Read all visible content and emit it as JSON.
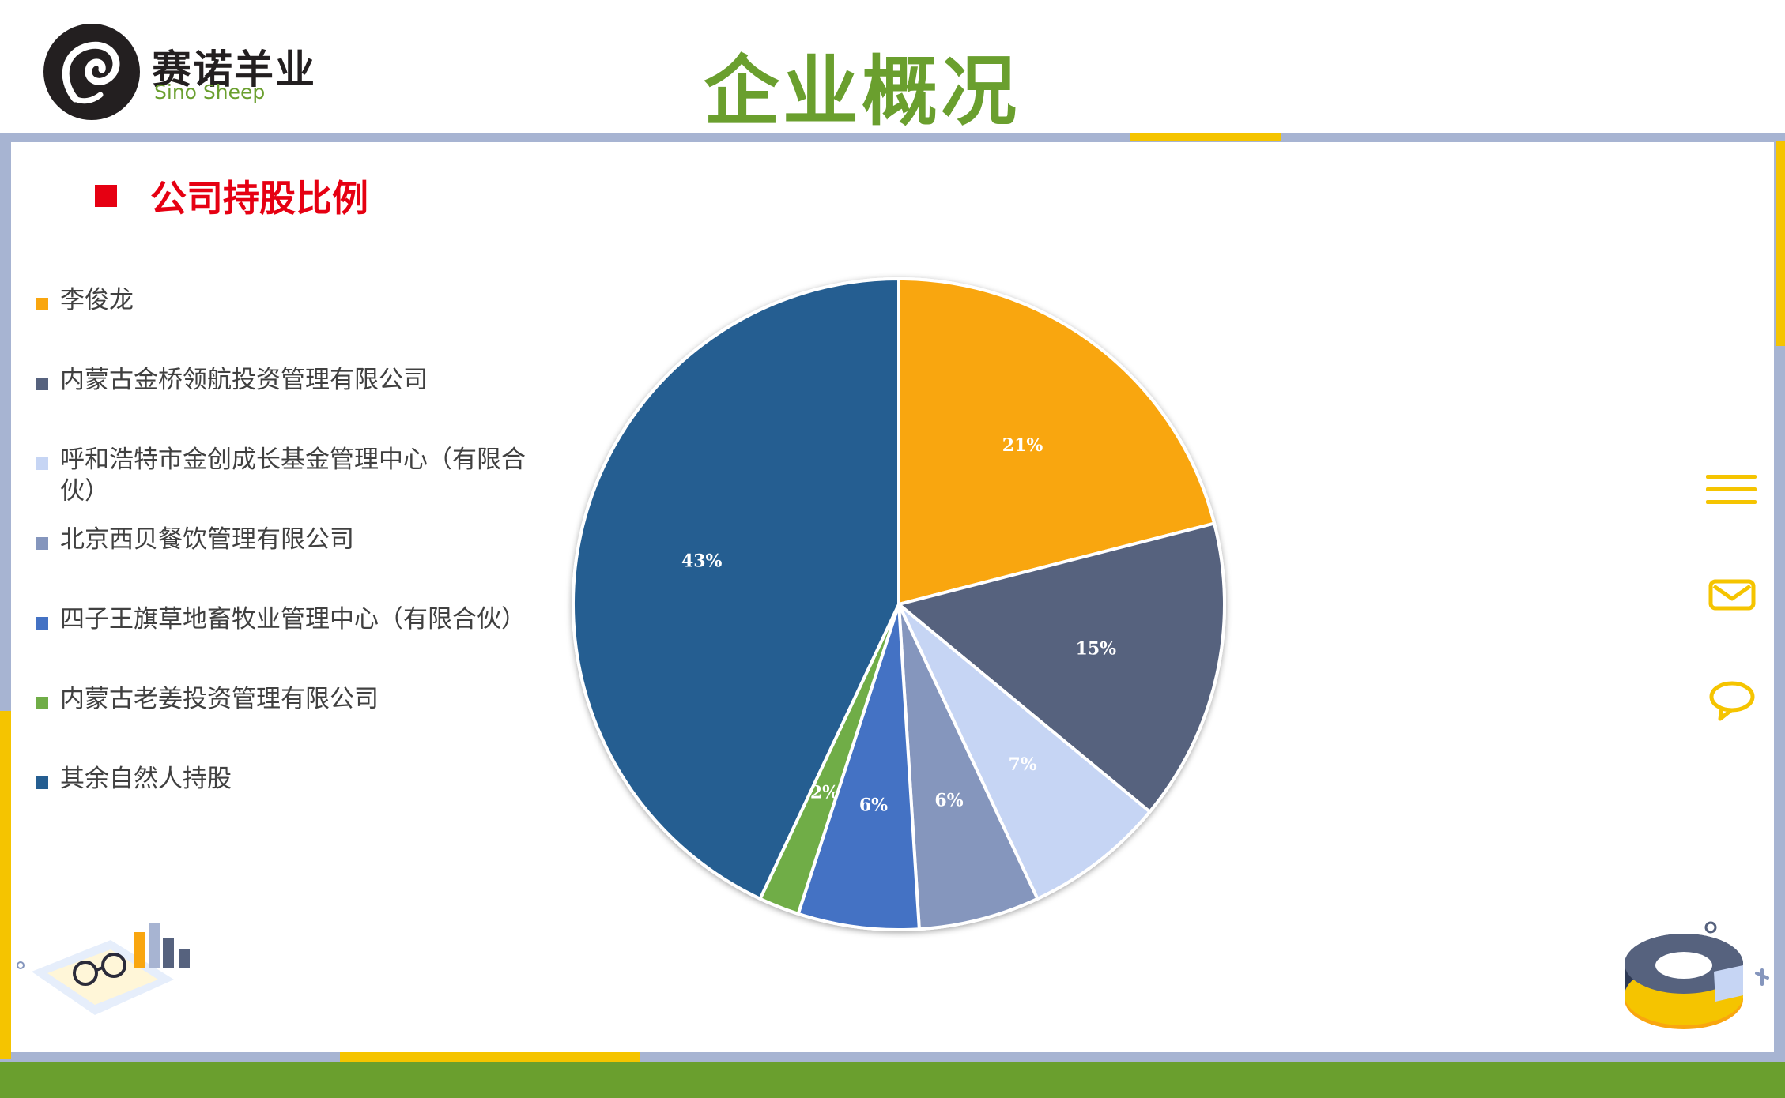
{
  "header": {
    "logo_cn": "赛诺羊业",
    "logo_en": "Sino Sheep",
    "title": "企业概况"
  },
  "section": {
    "title": "公司持股比例"
  },
  "colors": {
    "accent_green": "#6a9f2e",
    "accent_red": "#e60012",
    "accent_yellow": "#f5c400"
  },
  "side_icons": [
    "menu-icon",
    "mail-icon",
    "chat-icon"
  ],
  "chart_data": {
    "type": "pie",
    "title": "",
    "slices": [
      {
        "name": "李俊龙",
        "value": 21,
        "label": "21%",
        "color": "#f9a60f"
      },
      {
        "name": "内蒙古金桥领航投资管理有限公司",
        "value": 15,
        "label": "15%",
        "color": "#56627e"
      },
      {
        "name": "呼和浩特市金创成长基金管理中心（有限合伙）",
        "value": 7,
        "label": "7%",
        "color": "#c6d5f4"
      },
      {
        "name": "北京西贝餐饮管理有限公司",
        "value": 6,
        "label": "6%",
        "color": "#8596bd"
      },
      {
        "name": "四子王旗草地畜牧业管理中心（有限合伙）",
        "value": 6,
        "label": "6%",
        "color": "#4472c4"
      },
      {
        "name": "内蒙古老姜投资管理有限公司",
        "value": 2,
        "label": "2%",
        "color": "#70ad47"
      },
      {
        "name": "其余自然人持股",
        "value": 43,
        "label": "43%",
        "color": "#255e91"
      }
    ],
    "legend_position": "left"
  }
}
